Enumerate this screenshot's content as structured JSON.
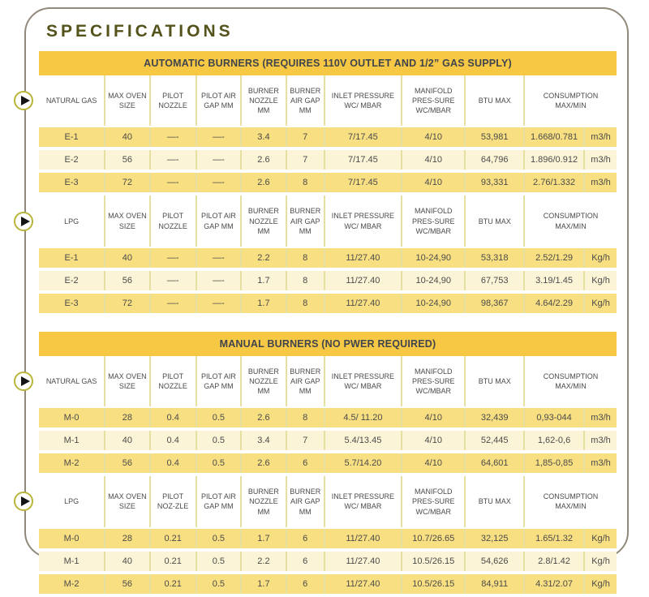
{
  "page": {
    "title": "SPECIFICATIONS"
  },
  "colors": {
    "band_yellow": "#F7C844",
    "row_dark": "#F8DF82",
    "row_light": "#FCF4D7",
    "separator": "#E5E0A0",
    "frame_border": "#92897D",
    "title_text": "#55531C",
    "band_text": "#40444D",
    "cell_text": "#4B4B4B",
    "play_ring": "#B9B53B"
  },
  "tables": [
    {
      "title": "AUTOMATIC BURNERS (REQUIRES 110V OUTLET AND  1/2” GAS SUPPLY)",
      "sections": [
        {
          "gas_label": "NATURAL GAS",
          "headers": [
            "MAX OVEN SIZE",
            "PILOT NOZZLE",
            "PILOT AIR GAP MM",
            "BURNER NOZZLE MM",
            "BURNER AIR GAP MM",
            "INLET PRESSURE WC/ MBAR",
            "MANIFOLD PRES-SURE WC/MBAR",
            "BTU MAX",
            "CONSUMPTION MAX/MIN"
          ],
          "rows": [
            {
              "model": "E-1",
              "values": [
                "40",
                "—-",
                "—-",
                "3.4",
                "7",
                "7/17.45",
                "4/10",
                "53,981",
                "1.668/0.781"
              ],
              "unit": "m3/h"
            },
            {
              "model": "E-2",
              "values": [
                "56",
                "—-",
                "—-",
                "2.6",
                "7",
                "7/17.45",
                "4/10",
                "64,796",
                "1.896/0.912"
              ],
              "unit": "m3/h"
            },
            {
              "model": "E-3",
              "values": [
                "72",
                "—-",
                "—-",
                "2.6",
                "8",
                "7/17.45",
                "4/10",
                "93,331",
                "2.76/1.332"
              ],
              "unit": "m3/h"
            }
          ]
        },
        {
          "gas_label": "LPG",
          "headers": [
            "MAX OVEN SIZE",
            "PILOT NOZZLE",
            "PILOT AIR GAP MM",
            "BURNER NOZZLE MM",
            "BURNER AIR GAP MM",
            "INLET PRESSURE WC/ MBAR",
            "MANIFOLD PRES-SURE WC/MBAR",
            "BTU MAX",
            "CONSUMPTION MAX/MIN"
          ],
          "rows": [
            {
              "model": "E-1",
              "values": [
                "40",
                "—-",
                "—-",
                "2.2",
                "8",
                "11/27.40",
                "10-24,90",
                "53,318",
                "2.52/1.29"
              ],
              "unit": "Kg/h"
            },
            {
              "model": "E-2",
              "values": [
                "56",
                "—-",
                "—-",
                "1.7",
                "8",
                "11/27.40",
                "10-24,90",
                "67,753",
                "3.19/1.45"
              ],
              "unit": "Kg/h"
            },
            {
              "model": "E-3",
              "values": [
                "72",
                "—-",
                "—-",
                "1.7",
                "8",
                "11/27.40",
                "10-24,90",
                "98,367",
                "4.64/2.29"
              ],
              "unit": "Kg/h"
            }
          ]
        }
      ]
    },
    {
      "title": "MANUAL BURNERS (NO PWER REQUIRED)",
      "sections": [
        {
          "gas_label": "NATURAL GAS",
          "headers": [
            "MAX OVEN SIZE",
            "PILOT NOZZLE",
            "PILOT AIR GAP MM",
            "BURNER NOZZLE MM",
            "BURNER AIR GAP MM",
            "INLET PRESSURE WC/ MBAR",
            "MANIFOLD PRES-SURE WC/MBAR",
            "BTU MAX",
            "CONSUMPTION MAX/MIN"
          ],
          "rows": [
            {
              "model": "M-0",
              "values": [
                "28",
                "0.4",
                "0.5",
                "2.6",
                "8",
                "4.5/ 11.20",
                "4/10",
                "32,439",
                "0,93-044"
              ],
              "unit": "m3/h"
            },
            {
              "model": "M-1",
              "values": [
                "40",
                "0.4",
                "0.5",
                "3.4",
                "7",
                "5.4/13.45",
                "4/10",
                "52,445",
                "1,62-0,6"
              ],
              "unit": "m3/h"
            },
            {
              "model": "M-2",
              "values": [
                "56",
                "0.4",
                "0.5",
                "2.6",
                "6",
                "5.7/14.20",
                "4/10",
                "64,601",
                "1,85-0,85"
              ],
              "unit": "m3/h"
            }
          ]
        },
        {
          "gas_label": "LPG",
          "headers": [
            "MAX OVEN SIZE",
            "PILOT NOZ-ZLE",
            "PILOT AIR GAP MM",
            "BURNER NOZZLE MM",
            "BURNER AIR GAP MM",
            "INLET PRESSURE WC/ MBAR",
            "MANIFOLD PRES-SURE WC/MBAR",
            "BTU MAX",
            "CONSUMPTION MAX/MIN"
          ],
          "rows": [
            {
              "model": "M-0",
              "values": [
                "28",
                "0.21",
                "0.5",
                "1.7",
                "6",
                "11/27.40",
                "10.7/26.65",
                "32,125",
                "1.65/1.32"
              ],
              "unit": "Kg/h"
            },
            {
              "model": "M-1",
              "values": [
                "40",
                "0.21",
                "0.5",
                "2.2",
                "6",
                "11/27.40",
                "10.5/26.15",
                "54,626",
                "2.8/1.42"
              ],
              "unit": "Kg/h"
            },
            {
              "model": "M-2",
              "values": [
                "56",
                "0.21",
                "0.5",
                "1.7",
                "6",
                "11/27.40",
                "10.5/26.15",
                "84,911",
                "4.31/2.07"
              ],
              "unit": "Kg/h"
            }
          ]
        }
      ]
    }
  ]
}
